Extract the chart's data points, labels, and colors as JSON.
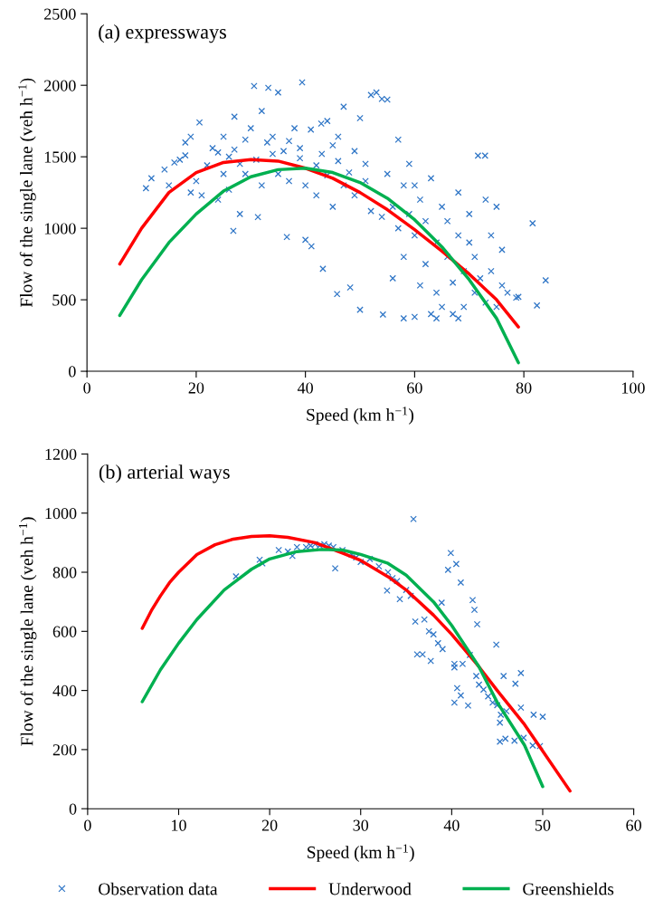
{
  "chart_data": [
    {
      "type": "scatter",
      "xlabel": "Speed (km h$^{−1}$)",
      "ylabel": "Flow of the single lane (veh h$^{−1}$)",
      "annotations": [
        "(a) expressways"
      ],
      "xlim": [
        0,
        100
      ],
      "xticks": [
        0,
        20,
        40,
        60,
        80,
        100
      ],
      "ylim": [
        0,
        2500
      ],
      "yticks": [
        0,
        500,
        1000,
        1500,
        2000,
        2500
      ],
      "grid": false,
      "legend": false,
      "series": [
        {
          "color": "#2e75c6",
          "marker": "cross",
          "x": [
            10.8,
            11.8,
            14.2,
            15,
            16,
            17,
            18,
            18,
            19,
            19,
            20,
            20.6,
            21,
            22,
            23,
            24,
            24,
            25,
            25,
            26,
            26,
            26.8,
            27,
            27,
            28,
            28,
            29,
            29,
            30,
            30.6,
            31,
            31.3,
            32,
            32,
            33,
            33.2,
            34,
            34,
            35,
            35,
            36,
            36.6,
            37,
            37,
            38,
            39,
            39,
            39.4,
            40,
            40,
            41,
            41.1,
            42,
            42,
            42.9,
            43,
            43.2,
            44,
            44,
            45,
            45,
            45.8,
            46,
            46,
            47,
            47,
            48,
            48.2,
            49,
            49,
            50,
            50,
            51,
            51,
            52,
            52,
            53,
            54,
            54,
            54.2,
            55,
            55,
            56,
            56,
            57,
            57,
            58,
            58,
            58,
            59,
            59,
            60,
            60,
            60,
            61,
            61,
            62,
            62,
            63,
            63,
            64,
            64,
            64,
            65,
            65,
            66,
            66,
            67,
            67,
            68,
            68,
            68,
            69,
            69,
            70,
            70,
            71,
            71,
            71.6,
            72,
            72.9,
            73,
            73,
            74,
            74,
            75,
            75,
            76,
            76,
            77,
            78.6,
            79,
            81.6,
            82.4,
            84
          ],
          "values": [
            1280,
            1350,
            1411,
            1300,
            1460,
            1480,
            1510,
            1600,
            1640,
            1250,
            1330,
            1740,
            1230,
            1440,
            1560,
            1200,
            1530,
            1640,
            1380,
            1270,
            1500,
            982,
            1550,
            1780,
            1100,
            1450,
            1620,
            1380,
            1700,
            1995,
            1480,
            1078,
            1820,
            1300,
            1600,
            1982,
            1640,
            1520,
            1950,
            1380,
            1540,
            939,
            1610,
            1330,
            1700,
            1490,
            1560,
            2020,
            1300,
            919,
            1690,
            874,
            1440,
            1230,
            1732,
            1520,
            717,
            1750,
            1370,
            1580,
            1150,
            540,
            1640,
            1470,
            1850,
            1300,
            1390,
            586,
            1540,
            1230,
            1770,
            430,
            1450,
            1330,
            1120,
            1932,
            1950,
            1905,
            1080,
            397,
            1900,
            1380,
            1150,
            650,
            1620,
            1000,
            1300,
            800,
            370,
            1450,
            1100,
            950,
            1300,
            380,
            1200,
            600,
            750,
            1050,
            400,
            1350,
            900,
            550,
            370,
            1150,
            450,
            800,
            1050,
            620,
            400,
            950,
            1250,
            370,
            700,
            450,
            900,
            1100,
            550,
            800,
            1508,
            650,
            1508,
            480,
            1200,
            950,
            700,
            1150,
            450,
            850,
            600,
            550,
            515,
            520,
            1035,
            460,
            636
          ]
        },
        {
          "type": "line",
          "color": "#ff0000",
          "marker": "none",
          "x": [
            6,
            10,
            15,
            20,
            25,
            30,
            35,
            40,
            45,
            50,
            55,
            60,
            65,
            70,
            75,
            79
          ],
          "values": [
            750,
            1000,
            1250,
            1390,
            1460,
            1480,
            1470,
            1420,
            1350,
            1250,
            1130,
            990,
            840,
            680,
            500,
            310
          ]
        },
        {
          "type": "line",
          "color": "#00b050",
          "marker": "none",
          "x": [
            6,
            10,
            15,
            20,
            25,
            30,
            35,
            40,
            45,
            50,
            55,
            60,
            65,
            70,
            75,
            79
          ],
          "values": [
            390,
            640,
            900,
            1100,
            1260,
            1360,
            1410,
            1420,
            1390,
            1320,
            1210,
            1060,
            870,
            640,
            370,
            60
          ]
        }
      ]
    },
    {
      "type": "scatter",
      "xlabel": "Speed (km h$^{−1}$)",
      "ylabel": "Flow of the single lane (veh h$^{−1}$)",
      "annotations": [
        "(b) arterial ways"
      ],
      "xlim": [
        0,
        60
      ],
      "xticks": [
        0,
        10,
        20,
        30,
        40,
        50,
        60
      ],
      "ylim": [
        0,
        1200
      ],
      "yticks": [
        0,
        200,
        400,
        600,
        800,
        1000,
        1200
      ],
      "grid": false,
      "legend": "bottom",
      "series": [
        {
          "name": "Observation data",
          "color": "#2e75c6",
          "marker": "cross",
          "x": [
            16.3,
            18.9,
            19.2,
            21,
            22,
            22.5,
            23,
            24,
            24.5,
            25,
            25.5,
            26,
            26.5,
            27,
            27.2,
            28,
            29,
            29.5,
            30,
            31,
            32,
            32.9,
            33,
            33.5,
            34,
            34.3,
            35,
            35.5,
            35.8,
            36,
            36.2,
            36.8,
            37,
            37.5,
            37.7,
            38,
            38.5,
            38.9,
            39,
            39.6,
            39.9,
            40.3,
            40.3,
            40.3,
            40.5,
            40.6,
            41,
            41,
            41.2,
            41.8,
            42,
            42.3,
            42.5,
            42.7,
            42.8,
            43,
            43.5,
            44,
            44.5,
            44.9,
            45,
            45.3,
            45.3,
            45.4,
            45.7,
            45.9,
            46,
            46.9,
            47,
            47.6,
            47.6,
            47.9,
            48.9,
            49,
            49.7,
            50
          ],
          "values": [
            786,
            842,
            830,
            875,
            870,
            855,
            885,
            885,
            890,
            895,
            890,
            895,
            890,
            885,
            813,
            875,
            860,
            850,
            835,
            845,
            820,
            738,
            800,
            780,
            770,
            709,
            740,
            720,
            980,
            633,
            522,
            522,
            640,
            600,
            500,
            590,
            560,
            697,
            540,
            808,
            865,
            490,
            478,
            359,
            828,
            408,
            383,
            765,
            490,
            349,
            520,
            706,
            673,
            449,
            624,
            420,
            403,
            380,
            359,
            555,
            350,
            291,
            227,
            318,
            449,
            237,
            330,
            230,
            423,
            459,
            342,
            240,
            214,
            318,
            212,
            311
          ]
        },
        {
          "name": "Underwood",
          "type": "line",
          "color": "#ff0000",
          "marker": "none",
          "x": [
            6,
            7,
            8,
            9,
            10,
            12,
            14,
            16,
            18,
            20,
            22,
            25,
            28,
            30,
            33,
            35,
            38,
            40,
            43,
            45,
            48,
            50,
            53
          ],
          "values": [
            610,
            670,
            720,
            765,
            800,
            860,
            893,
            912,
            921,
            923,
            918,
            900,
            865,
            840,
            785,
            740,
            655,
            590,
            480,
            400,
            285,
            195,
            60
          ]
        },
        {
          "name": "Greenshields",
          "type": "line",
          "color": "#00b050",
          "marker": "none",
          "x": [
            6,
            8,
            10,
            12,
            15,
            18,
            20,
            23,
            25.7,
            28,
            30,
            33,
            35,
            38,
            40,
            43,
            45,
            48,
            50
          ],
          "values": [
            362,
            470,
            560,
            640,
            740,
            810,
            845,
            870,
            877,
            875,
            860,
            830,
            790,
            700,
            620,
            480,
            360,
            215,
            75
          ]
        }
      ]
    }
  ]
}
